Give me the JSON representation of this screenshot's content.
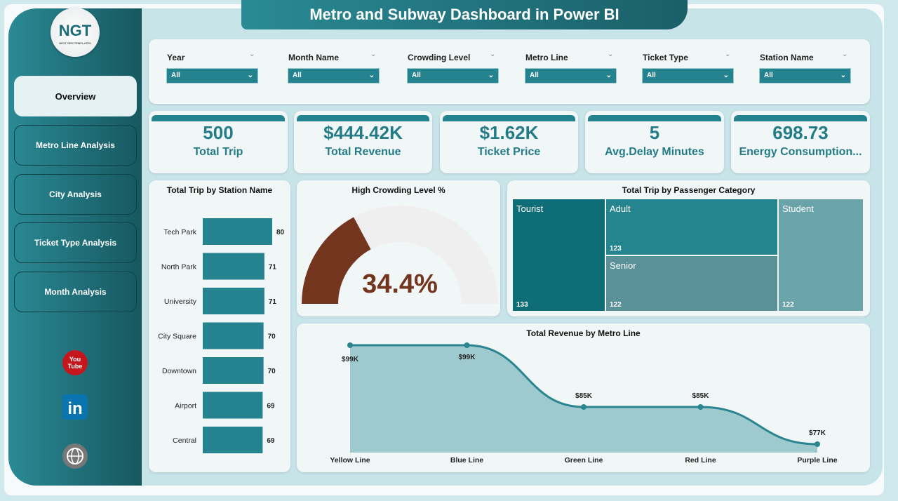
{
  "title": "Metro and Subway Dashboard in Power BI",
  "logo": {
    "text": "NGT",
    "tagline": "NEXT GEN TEMPLATES"
  },
  "nav": [
    {
      "label": "Overview",
      "active": true
    },
    {
      "label": "Metro Line Analysis"
    },
    {
      "label": "City Analysis"
    },
    {
      "label": "Ticket Type Analysis"
    },
    {
      "label": "Month Analysis"
    }
  ],
  "social": [
    "youtube-icon",
    "linkedin-icon",
    "globe-icon"
  ],
  "filters": [
    {
      "label": "Year",
      "value": "All"
    },
    {
      "label": "Month Name",
      "value": "All"
    },
    {
      "label": "Crowding Level",
      "value": "All"
    },
    {
      "label": "Metro Line",
      "value": "All"
    },
    {
      "label": "Ticket Type",
      "value": "All"
    },
    {
      "label": "Station Name",
      "value": "All"
    }
  ],
  "kpis": [
    {
      "value": "500",
      "label": "Total Trip"
    },
    {
      "value": "$444.42K",
      "label": "Total Revenue"
    },
    {
      "value": "$1.62K",
      "label": "Ticket Price"
    },
    {
      "value": "5",
      "label": "Avg.Delay Minutes"
    },
    {
      "value": "698.73",
      "label": "Energy Consumption..."
    }
  ],
  "colors": {
    "accent": "#25838f",
    "gauge": "#74351e",
    "gauge_track": "#efefef"
  },
  "chart_data": [
    {
      "type": "bar",
      "orientation": "horizontal",
      "title": "Total Trip by Station Name",
      "categories": [
        "Tech Park",
        "North Park",
        "University",
        "City Square",
        "Downtown",
        "Airport",
        "Central"
      ],
      "values": [
        80,
        71,
        71,
        70,
        70,
        69,
        69
      ]
    },
    {
      "type": "gauge",
      "title": "High Crowding Level %",
      "value": 34.4,
      "label": "34.4%",
      "max": 100
    },
    {
      "type": "treemap",
      "title": "Total Trip by Passenger Category",
      "categories": [
        "Tourist",
        "Adult",
        "Senior",
        "Student"
      ],
      "values": [
        133,
        123,
        122,
        122
      ]
    },
    {
      "type": "area",
      "title": "Total Revenue by Metro Line",
      "categories": [
        "Yellow Line",
        "Blue Line",
        "Green Line",
        "Red Line",
        "Purple Line"
      ],
      "values": [
        99,
        99,
        85,
        85,
        77
      ],
      "labels": [
        "$99K",
        "$99K",
        "$85K",
        "$85K",
        "$77K"
      ],
      "unit": "K USD"
    }
  ]
}
